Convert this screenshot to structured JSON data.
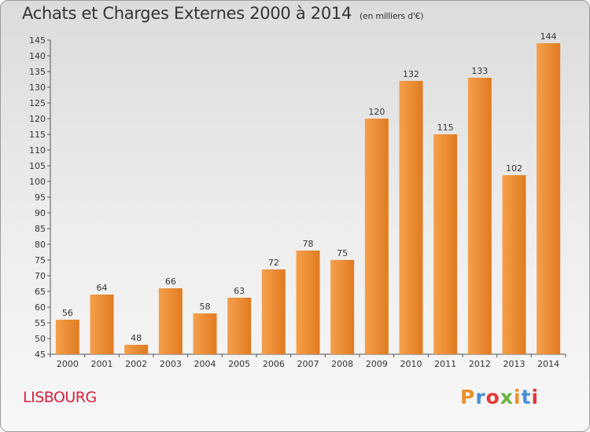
{
  "header": {
    "title": "Achats et Charges Externes 2000 à 2014",
    "subtitle": "(en milliers d'€)"
  },
  "footer": {
    "commune": "LISBOURG",
    "logo": "Proxiti",
    "logo_colors": [
      "#e8912c",
      "#4a8fd6",
      "#e03a3a",
      "#6bb33b",
      "#e8912c",
      "#4a8fd6",
      "#e03a3a"
    ]
  },
  "chart_data": {
    "type": "bar",
    "title": "Achats et Charges Externes 2000 à 2014",
    "subtitle": "(en milliers d'€)",
    "categories": [
      "2000",
      "2001",
      "2002",
      "2003",
      "2004",
      "2005",
      "2006",
      "2007",
      "2008",
      "2009",
      "2010",
      "2011",
      "2012",
      "2013",
      "2014"
    ],
    "values": [
      56,
      64,
      48,
      66,
      58,
      63,
      72,
      78,
      75,
      120,
      132,
      115,
      133,
      102,
      144
    ],
    "ylim": [
      45,
      145
    ],
    "yticks": [
      45,
      50,
      55,
      60,
      65,
      70,
      75,
      80,
      85,
      90,
      95,
      100,
      105,
      110,
      115,
      120,
      125,
      130,
      135,
      140,
      145
    ],
    "grid": false,
    "colors": {
      "bar_light": "#f8a855",
      "bar_dark": "#d9711a",
      "axis": "#555555"
    }
  }
}
